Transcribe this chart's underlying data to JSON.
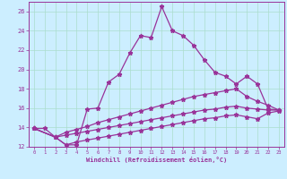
{
  "xlabel": "Windchill (Refroidissement éolien,°C)",
  "bg_color": "#cceeff",
  "grid_color": "#aaddcc",
  "line_color": "#993399",
  "xlim": [
    -0.5,
    23.5
  ],
  "ylim": [
    12,
    27
  ],
  "yticks": [
    12,
    14,
    16,
    18,
    20,
    22,
    24,
    26
  ],
  "xticks": [
    0,
    1,
    2,
    3,
    4,
    5,
    6,
    7,
    8,
    9,
    10,
    11,
    12,
    13,
    14,
    15,
    16,
    17,
    18,
    19,
    20,
    21,
    22,
    23
  ],
  "line1_x": [
    0,
    1,
    2,
    3,
    4,
    5,
    6,
    7,
    8,
    9,
    10,
    11,
    12,
    13,
    14,
    15,
    16,
    17,
    18,
    19,
    20,
    21,
    22,
    23
  ],
  "line1_y": [
    13.9,
    13.9,
    13.0,
    12.2,
    12.2,
    15.9,
    16.0,
    18.7,
    19.5,
    21.7,
    23.5,
    23.3,
    26.5,
    24.0,
    23.5,
    22.5,
    21.0,
    19.7,
    19.3,
    18.5,
    19.3,
    18.5,
    15.9,
    15.8
  ],
  "line2_x": [
    0,
    2,
    3,
    4,
    5,
    6,
    7,
    8,
    9,
    10,
    11,
    12,
    13,
    14,
    15,
    16,
    17,
    18,
    19,
    20,
    21,
    22,
    23
  ],
  "line2_y": [
    13.9,
    13.0,
    13.5,
    13.8,
    14.1,
    14.5,
    14.8,
    15.1,
    15.4,
    15.7,
    16.0,
    16.3,
    16.6,
    16.9,
    17.2,
    17.4,
    17.6,
    17.8,
    18.0,
    17.2,
    16.7,
    16.3,
    15.8
  ],
  "line3_x": [
    0,
    2,
    3,
    4,
    5,
    6,
    7,
    8,
    9,
    10,
    11,
    12,
    13,
    14,
    15,
    16,
    17,
    18,
    19,
    20,
    21,
    22,
    23
  ],
  "line3_y": [
    13.9,
    13.0,
    13.2,
    13.4,
    13.6,
    13.8,
    14.0,
    14.2,
    14.4,
    14.6,
    14.8,
    15.0,
    15.2,
    15.4,
    15.6,
    15.8,
    15.9,
    16.1,
    16.2,
    16.0,
    15.9,
    15.8,
    15.8
  ],
  "line4_x": [
    0,
    2,
    3,
    4,
    5,
    6,
    7,
    8,
    9,
    10,
    11,
    12,
    13,
    14,
    15,
    16,
    17,
    18,
    19,
    20,
    21,
    22,
    23
  ],
  "line4_y": [
    13.9,
    13.0,
    12.2,
    12.5,
    12.7,
    12.9,
    13.1,
    13.3,
    13.5,
    13.7,
    13.9,
    14.1,
    14.3,
    14.5,
    14.7,
    14.9,
    15.0,
    15.2,
    15.3,
    15.1,
    14.9,
    15.5,
    15.7
  ]
}
